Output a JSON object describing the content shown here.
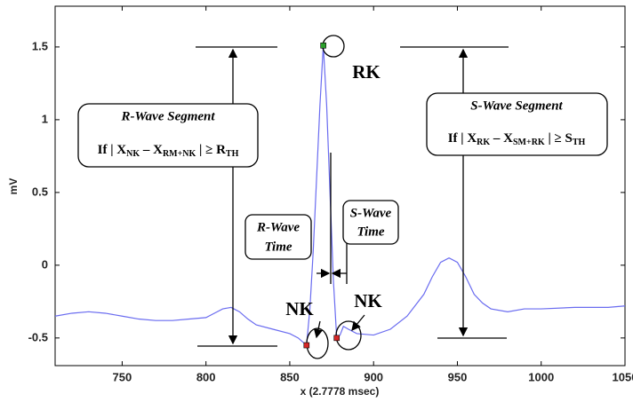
{
  "chart_data": {
    "type": "line",
    "x_label": "x (2.7778 msec)",
    "y_label": "mV",
    "xlim": [
      710,
      1050
    ],
    "ylim": [
      -0.69,
      1.78
    ],
    "xticks": [
      750,
      800,
      850,
      900,
      950,
      1000,
      1050
    ],
    "yticks": [
      -0.5,
      0,
      0.5,
      1,
      1.5
    ],
    "series": [
      {
        "color": "#6a6cf0",
        "x": [
          710,
          720,
          730,
          740,
          750,
          760,
          770,
          780,
          790,
          800,
          805,
          810,
          815,
          820,
          825,
          830,
          840,
          850,
          855,
          858,
          860,
          862,
          864,
          866,
          868,
          870,
          872,
          874,
          876,
          878,
          880,
          882,
          885,
          890,
          900,
          910,
          920,
          930,
          935,
          940,
          945,
          950,
          955,
          960,
          965,
          970,
          980,
          990,
          1000,
          1020,
          1040,
          1050
        ],
        "values": [
          -0.35,
          -0.33,
          -0.32,
          -0.33,
          -0.35,
          -0.37,
          -0.38,
          -0.38,
          -0.37,
          -0.36,
          -0.33,
          -0.3,
          -0.29,
          -0.32,
          -0.37,
          -0.41,
          -0.44,
          -0.47,
          -0.5,
          -0.53,
          -0.55,
          -0.3,
          0.1,
          0.6,
          1.1,
          1.51,
          1.1,
          0.5,
          -0.1,
          -0.5,
          -0.48,
          -0.42,
          -0.44,
          -0.47,
          -0.48,
          -0.44,
          -0.35,
          -0.2,
          -0.08,
          0.02,
          0.05,
          0.02,
          -0.08,
          -0.2,
          -0.26,
          -0.3,
          -0.32,
          -0.3,
          -0.3,
          -0.29,
          -0.29,
          -0.28
        ]
      }
    ],
    "points": [
      {
        "label": "RK",
        "x": 870,
        "y": 1.51,
        "color": "#2ca02c"
      },
      {
        "label": "NK",
        "x": 860,
        "y": -0.55,
        "color": "#d62728"
      },
      {
        "label": "NK",
        "x": 878,
        "y": -0.5,
        "color": "#d62728"
      }
    ],
    "annotations": {
      "r_wave_segment": {
        "title": "R-Wave Segment",
        "formula": [
          "If | X",
          "NK",
          " – X",
          "RM+NK",
          " | ≥ R",
          "TH"
        ]
      },
      "s_wave_segment": {
        "title": "S-Wave Segment",
        "formula": [
          "If | X",
          "RK",
          " – X",
          "SM+RK",
          " | ≥ S",
          "TH"
        ]
      },
      "r_wave_time": [
        "R-Wave",
        "Time"
      ],
      "s_wave_time": [
        "S-Wave",
        "Time"
      ]
    }
  }
}
